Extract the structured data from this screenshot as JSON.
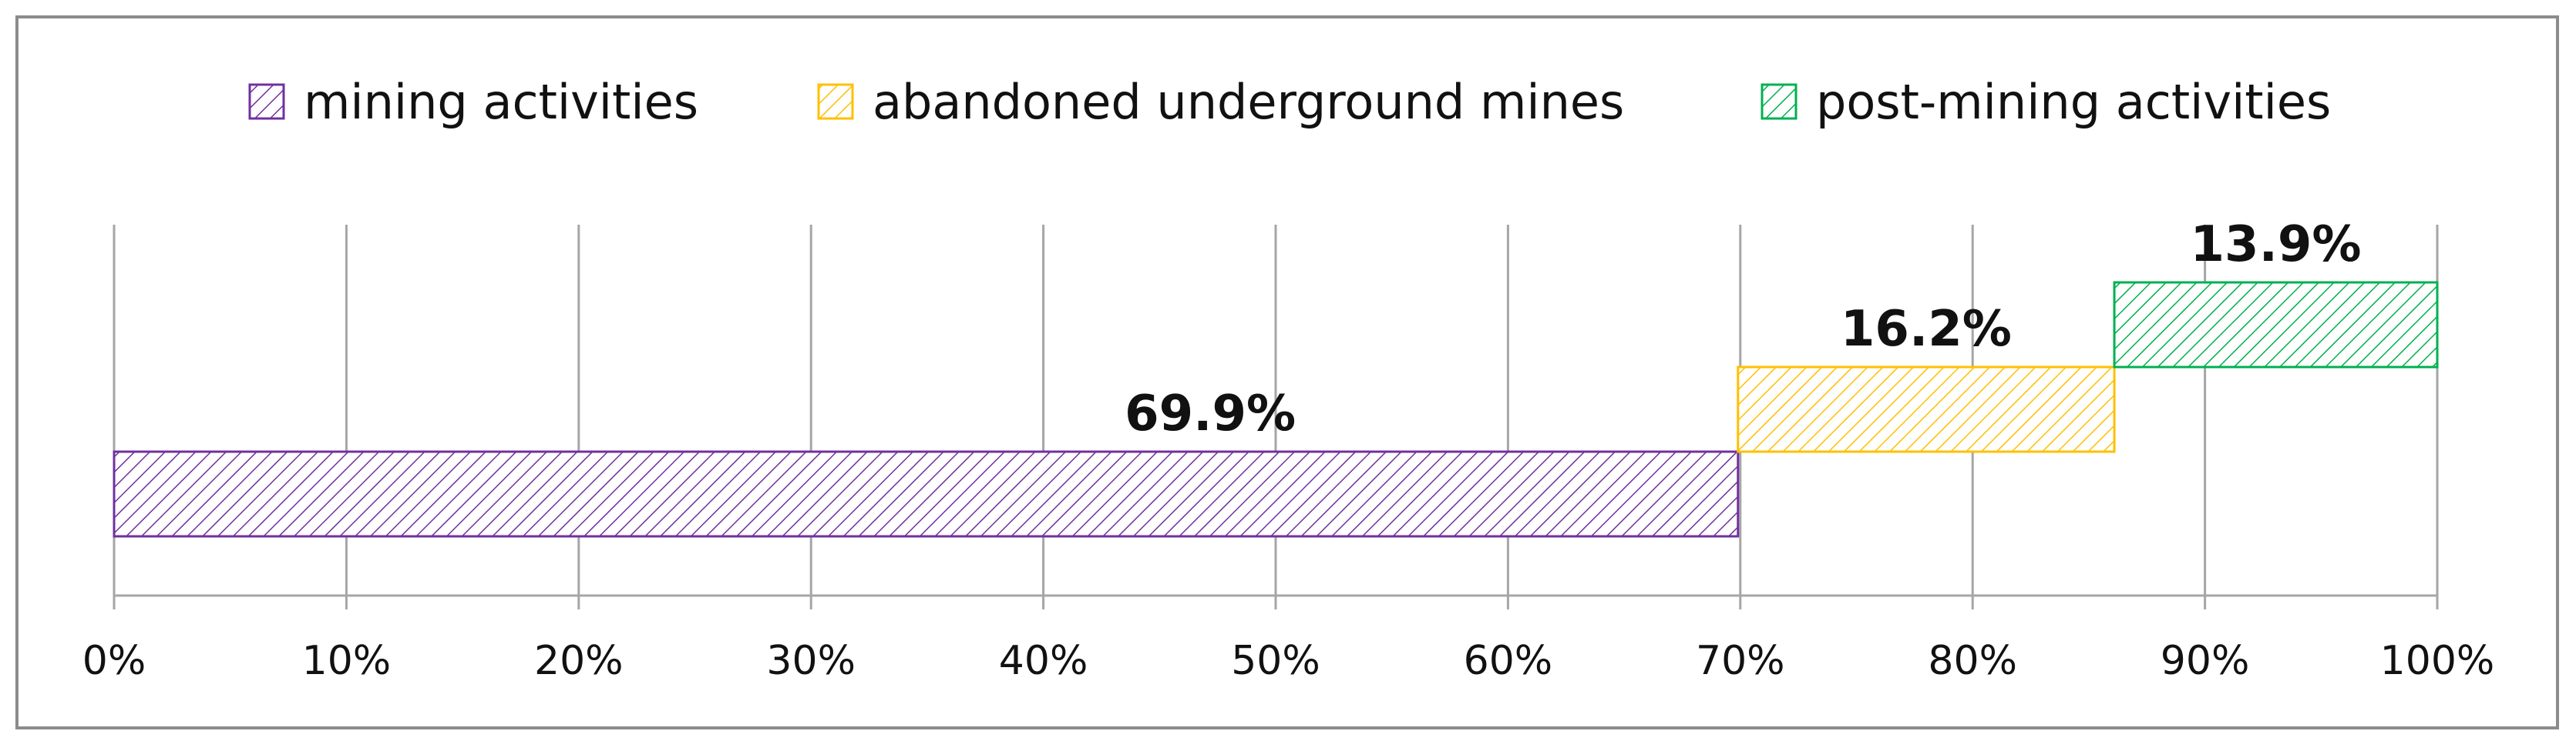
{
  "chart_data": {
    "type": "bar",
    "orientation": "horizontal",
    "layout": "waterfall",
    "xlim": [
      0,
      100
    ],
    "x_tick_step": 10,
    "x_tick_labels": [
      "0%",
      "10%",
      "20%",
      "30%",
      "40%",
      "50%",
      "60%",
      "70%",
      "80%",
      "90%",
      "100%"
    ],
    "grid": true,
    "legend_position": "top",
    "fill_pattern": "diagonal-hatch",
    "series": [
      {
        "name": "mining activities",
        "start": 0,
        "value": 69.9,
        "label": "69.9%",
        "color": "#7030a0"
      },
      {
        "name": "abandoned underground mines",
        "start": 69.9,
        "value": 16.2,
        "label": "16.2%",
        "color": "#ffc000"
      },
      {
        "name": "post-mining activities",
        "start": 86.1,
        "value": 13.9,
        "label": "13.9%",
        "color": "#00b050"
      }
    ]
  }
}
